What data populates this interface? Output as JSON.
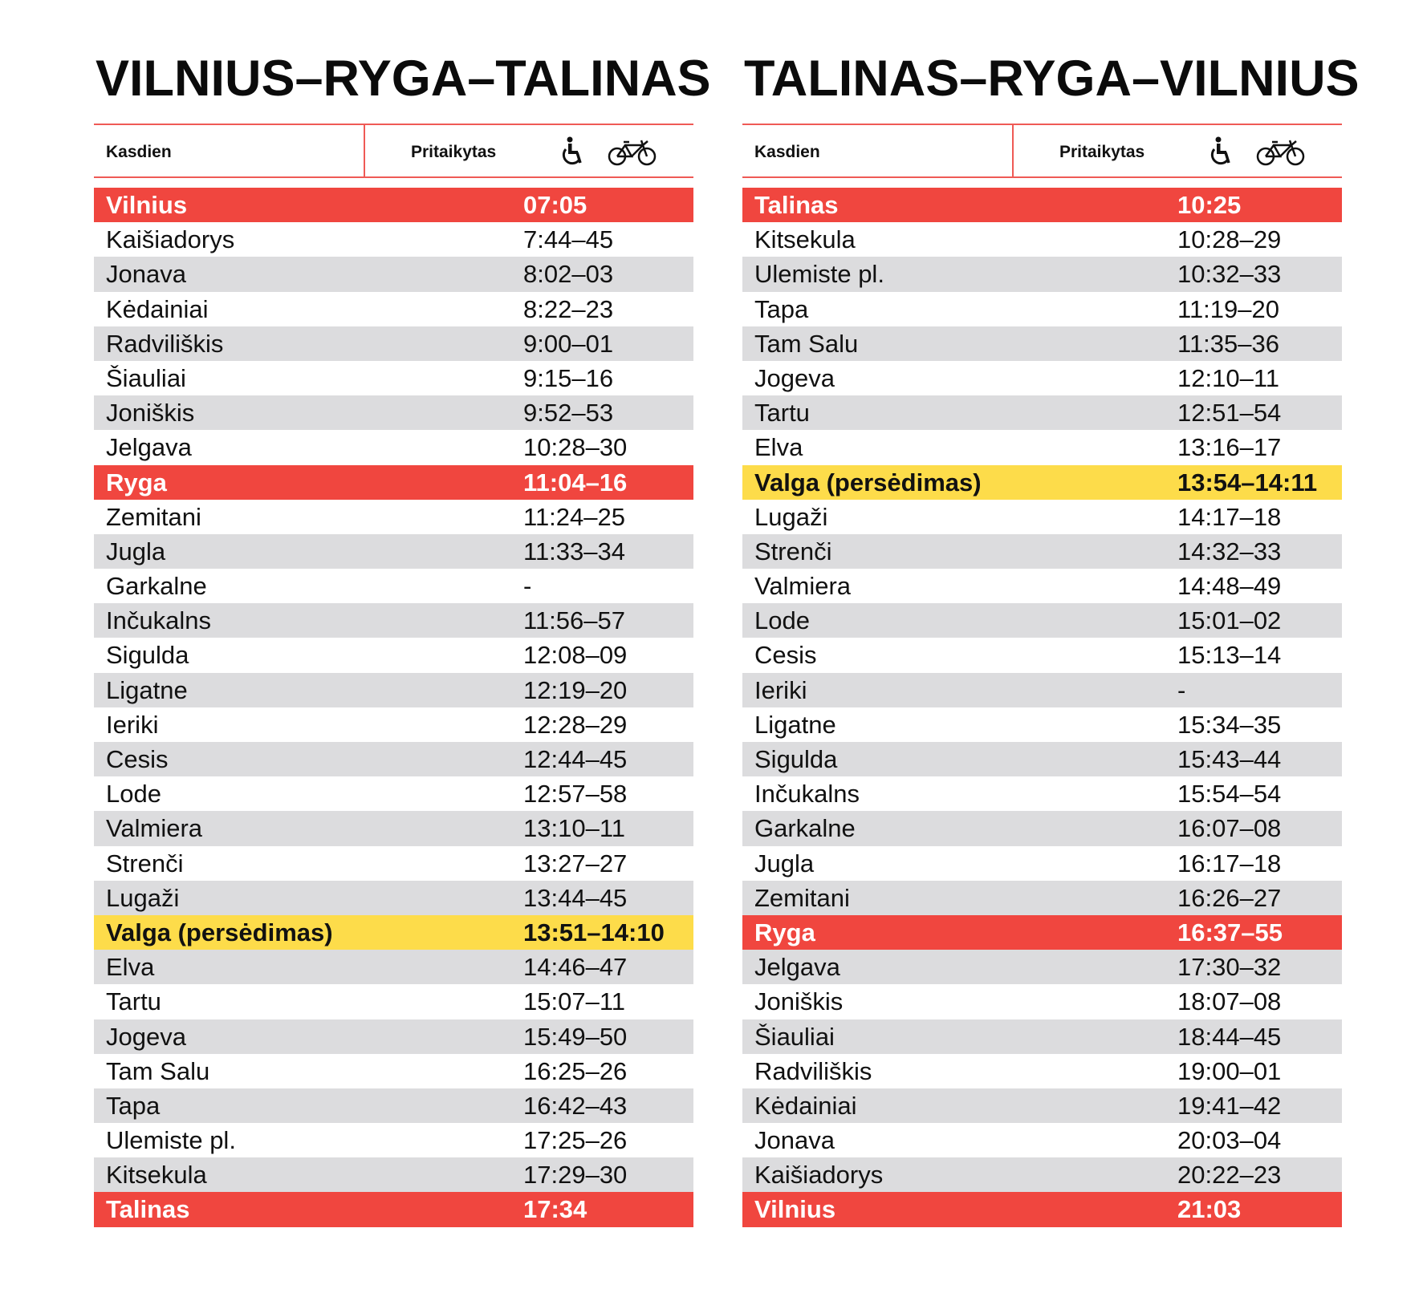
{
  "colors": {
    "red": "#f0463f",
    "yellow": "#fddc4a",
    "gray": "#dcdcde",
    "line": "#ef5a55"
  },
  "tables": [
    {
      "title": "VILNIUS–RYGA–TALINAS",
      "header": {
        "days": "Kasdien",
        "adapted": "Pritaikytas",
        "icons": [
          "wheelchair-icon",
          "bicycle-icon"
        ]
      },
      "rows": [
        {
          "station": "Vilnius",
          "time": "07:05",
          "type": "red"
        },
        {
          "station": "Kaišiadorys",
          "time": "7:44–45"
        },
        {
          "station": "Jonava",
          "time": "8:02–03"
        },
        {
          "station": "Kėdainiai",
          "time": "8:22–23"
        },
        {
          "station": "Radviliškis",
          "time": "9:00–01"
        },
        {
          "station": "Šiauliai",
          "time": "9:15–16"
        },
        {
          "station": "Joniškis",
          "time": "9:52–53"
        },
        {
          "station": "Jelgava",
          "time": "10:28–30"
        },
        {
          "station": "Ryga",
          "time": "11:04–16",
          "type": "red"
        },
        {
          "station": "Zemitani",
          "time": "11:24–25"
        },
        {
          "station": "Jugla",
          "time": "11:33–34"
        },
        {
          "station": "Garkalne",
          "time": "-"
        },
        {
          "station": "Inčukalns",
          "time": "11:56–57"
        },
        {
          "station": "Sigulda",
          "time": "12:08–09"
        },
        {
          "station": "Ligatne",
          "time": "12:19–20"
        },
        {
          "station": "Ieriki",
          "time": "12:28–29"
        },
        {
          "station": "Cesis",
          "time": "12:44–45"
        },
        {
          "station": "Lode",
          "time": "12:57–58"
        },
        {
          "station": "Valmiera",
          "time": "13:10–11"
        },
        {
          "station": "Strenči",
          "time": "13:27–27"
        },
        {
          "station": "Lugaži",
          "time": "13:44–45"
        },
        {
          "station": "Valga (persėdimas)",
          "time": "13:51–14:10",
          "type": "yellow"
        },
        {
          "station": "Elva",
          "time": "14:46–47"
        },
        {
          "station": "Tartu",
          "time": "15:07–11"
        },
        {
          "station": "Jogeva",
          "time": "15:49–50"
        },
        {
          "station": "Tam Salu",
          "time": "16:25–26"
        },
        {
          "station": "Tapa",
          "time": "16:42–43"
        },
        {
          "station": "Ulemiste pl.",
          "time": "17:25–26"
        },
        {
          "station": "Kitsekula",
          "time": "17:29–30"
        },
        {
          "station": "Talinas",
          "time": "17:34",
          "type": "red"
        }
      ]
    },
    {
      "title": "TALINAS–RYGA–VILNIUS",
      "header": {
        "days": "Kasdien",
        "adapted": "Pritaikytas",
        "icons": [
          "wheelchair-icon",
          "bicycle-icon"
        ]
      },
      "rows": [
        {
          "station": "Talinas",
          "time": "10:25",
          "type": "red"
        },
        {
          "station": "Kitsekula",
          "time": "10:28–29"
        },
        {
          "station": "Ulemiste pl.",
          "time": "10:32–33"
        },
        {
          "station": "Tapa",
          "time": "11:19–20"
        },
        {
          "station": "Tam Salu",
          "time": "11:35–36"
        },
        {
          "station": "Jogeva",
          "time": "12:10–11"
        },
        {
          "station": "Tartu",
          "time": "12:51–54"
        },
        {
          "station": "Elva",
          "time": "13:16–17"
        },
        {
          "station": "Valga (persėdimas)",
          "time": "13:54–14:11",
          "type": "yellow"
        },
        {
          "station": "Lugaži",
          "time": "14:17–18"
        },
        {
          "station": "Strenči",
          "time": "14:32–33"
        },
        {
          "station": "Valmiera",
          "time": "14:48–49"
        },
        {
          "station": "Lode",
          "time": "15:01–02"
        },
        {
          "station": "Cesis",
          "time": "15:13–14"
        },
        {
          "station": "Ieriki",
          "time": "-"
        },
        {
          "station": "Ligatne",
          "time": "15:34–35"
        },
        {
          "station": "Sigulda",
          "time": "15:43–44"
        },
        {
          "station": "Inčukalns",
          "time": "15:54–54"
        },
        {
          "station": "Garkalne",
          "time": "16:07–08"
        },
        {
          "station": "Jugla",
          "time": "16:17–18"
        },
        {
          "station": "Zemitani",
          "time": "16:26–27"
        },
        {
          "station": "Ryga",
          "time": "16:37–55",
          "type": "red"
        },
        {
          "station": "Jelgava",
          "time": "17:30–32"
        },
        {
          "station": "Joniškis",
          "time": "18:07–08"
        },
        {
          "station": "Šiauliai",
          "time": "18:44–45"
        },
        {
          "station": "Radviliškis",
          "time": "19:00–01"
        },
        {
          "station": "Kėdainiai",
          "time": "19:41–42"
        },
        {
          "station": "Jonava",
          "time": "20:03–04"
        },
        {
          "station": "Kaišiadorys",
          "time": "20:22–23"
        },
        {
          "station": "Vilnius",
          "time": "21:03",
          "type": "red"
        }
      ]
    }
  ]
}
